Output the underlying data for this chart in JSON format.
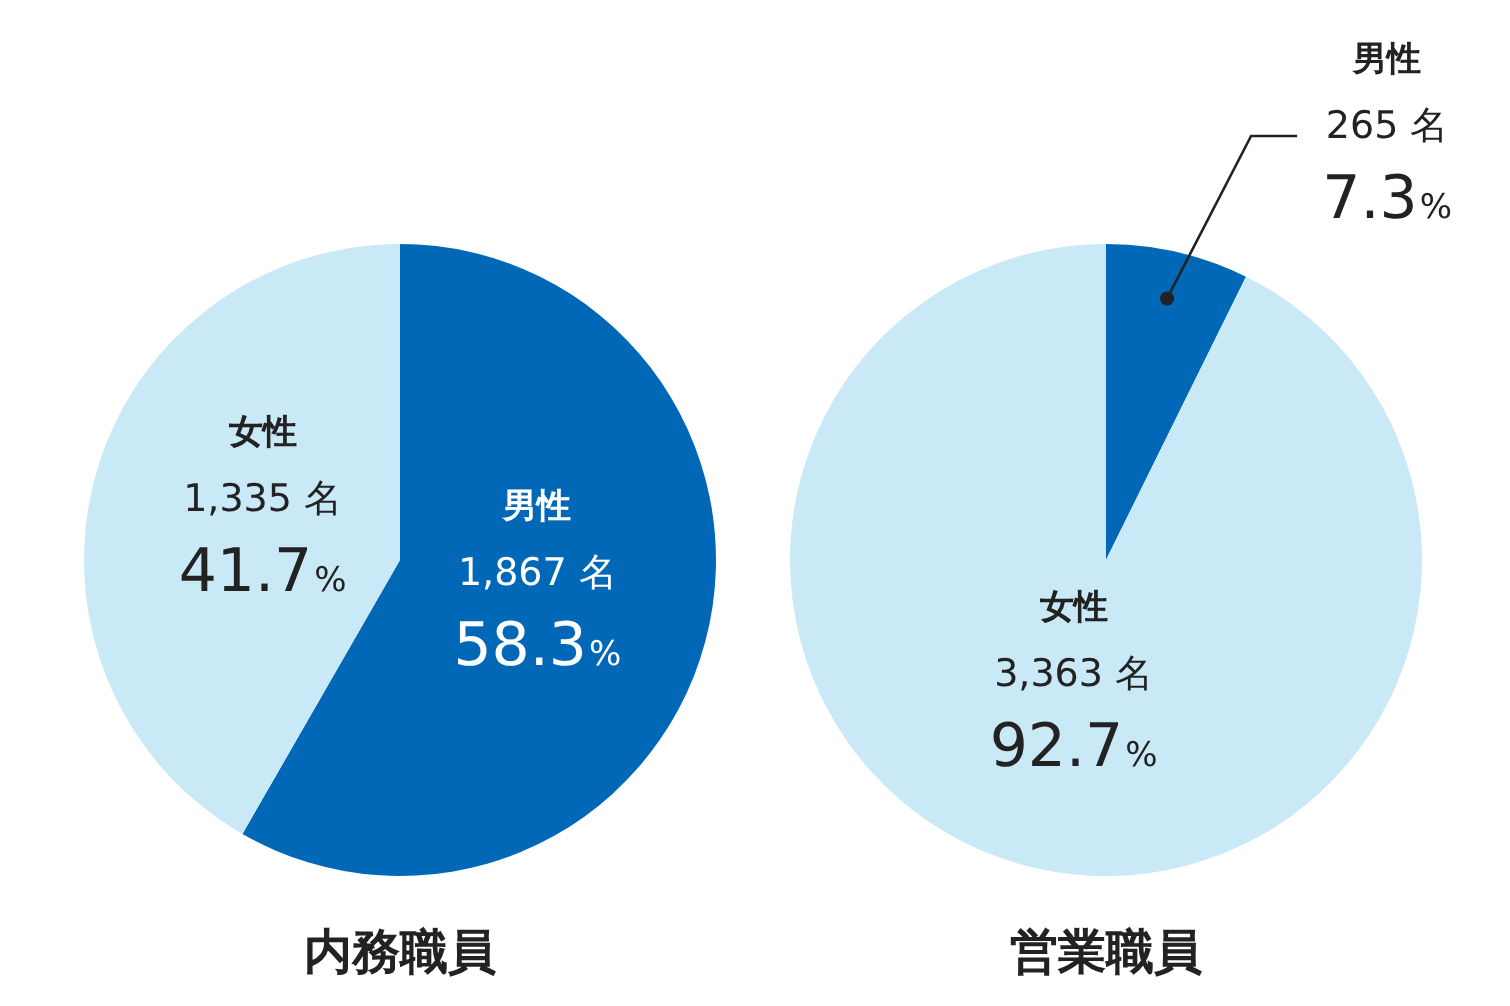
{
  "chart_data": [
    {
      "type": "pie",
      "title": "内務職員",
      "categories": [
        "男性",
        "女性"
      ],
      "values": [
        1867,
        1335
      ],
      "colors": [
        "#0068b7",
        "#c9e9f7"
      ],
      "value_labels": [
        "1,867 名",
        "1,335 名"
      ],
      "annotations": [
        "58.3%",
        "41.7%"
      ]
    },
    {
      "type": "pie",
      "title": "営業職員",
      "categories": [
        "男性",
        "女性"
      ],
      "values": [
        265,
        3363
      ],
      "colors": [
        "#0068b7",
        "#c9e9f7"
      ],
      "value_labels": [
        "265 名",
        "3,363 名"
      ],
      "annotations": [
        "7.3%",
        "92.7%"
      ]
    }
  ]
}
